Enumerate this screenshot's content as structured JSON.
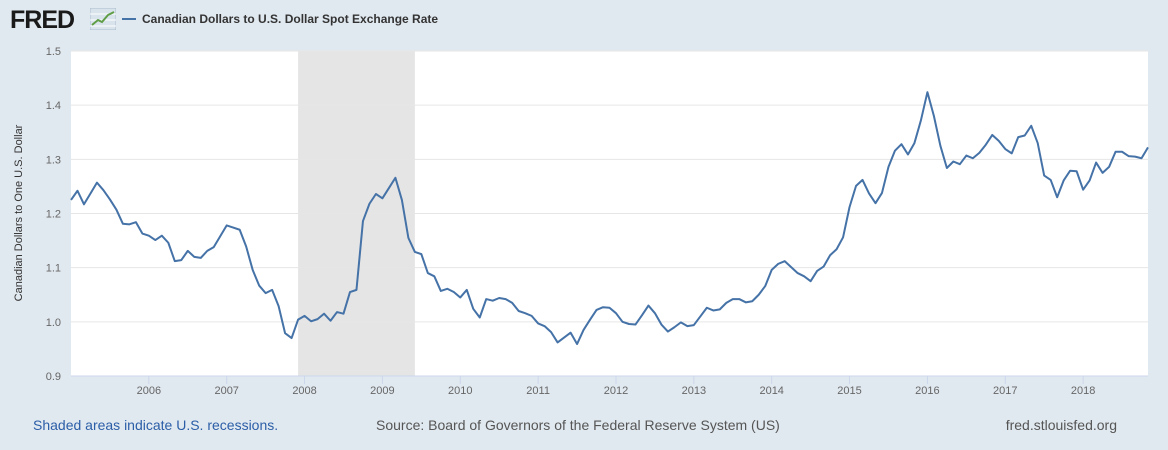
{
  "header": {
    "logo_text": "FRED",
    "logo_icon": "chart-line-icon",
    "legend_label": "Canadian Dollars to U.S. Dollar Spot Exchange Rate",
    "series_color": "#4572a7"
  },
  "footer": {
    "recession_note": "Shaded areas indicate U.S. recessions.",
    "source": "Source: Board of Governors of the Federal Reserve System (US)",
    "site": "fred.stlouisfed.org"
  },
  "chart_data": {
    "type": "line",
    "ylabel": "Canadian Dollars to One U.S. Dollar",
    "xlabel": "",
    "ylim": [
      0.9,
      1.5
    ],
    "yticks": [
      "0.9",
      "1.0",
      "1.1",
      "1.2",
      "1.3",
      "1.4",
      "1.5"
    ],
    "xlim": [
      "2005-01",
      "2018-11"
    ],
    "xticks": [
      "2006",
      "2007",
      "2008",
      "2009",
      "2010",
      "2011",
      "2012",
      "2013",
      "2014",
      "2015",
      "2016",
      "2017",
      "2018"
    ],
    "grid": true,
    "legend_position": "top-left",
    "recessions": [
      {
        "start": "2007-12",
        "end": "2009-06"
      }
    ],
    "recession_color": "#e5e5e5",
    "series": [
      {
        "name": "Canadian Dollars to U.S. Dollar Spot Exchange Rate",
        "color": "#4572a7",
        "start": "2005-01",
        "frequency": "monthly",
        "values": [
          1.225,
          1.242,
          1.217,
          1.237,
          1.257,
          1.243,
          1.226,
          1.207,
          1.181,
          1.18,
          1.184,
          1.163,
          1.159,
          1.151,
          1.159,
          1.146,
          1.112,
          1.114,
          1.131,
          1.12,
          1.118,
          1.131,
          1.138,
          1.158,
          1.178,
          1.174,
          1.17,
          1.139,
          1.096,
          1.067,
          1.053,
          1.059,
          1.029,
          0.979,
          0.97,
          1.004,
          1.011,
          1.001,
          1.005,
          1.015,
          1.002,
          1.018,
          1.015,
          1.055,
          1.059,
          1.186,
          1.218,
          1.236,
          1.228,
          1.247,
          1.266,
          1.225,
          1.155,
          1.129,
          1.125,
          1.09,
          1.084,
          1.057,
          1.061,
          1.055,
          1.045,
          1.059,
          1.024,
          1.008,
          1.042,
          1.039,
          1.044,
          1.042,
          1.035,
          1.02,
          1.016,
          1.011,
          0.997,
          0.992,
          0.981,
          0.962,
          0.971,
          0.98,
          0.959,
          0.985,
          1.004,
          1.022,
          1.027,
          1.026,
          1.016,
          1.0,
          0.996,
          0.995,
          1.012,
          1.03,
          1.016,
          0.995,
          0.982,
          0.99,
          0.999,
          0.992,
          0.994,
          1.01,
          1.026,
          1.021,
          1.023,
          1.035,
          1.042,
          1.042,
          1.036,
          1.038,
          1.05,
          1.066,
          1.096,
          1.107,
          1.112,
          1.101,
          1.09,
          1.084,
          1.075,
          1.094,
          1.102,
          1.123,
          1.134,
          1.156,
          1.212,
          1.251,
          1.262,
          1.237,
          1.219,
          1.238,
          1.286,
          1.316,
          1.328,
          1.309,
          1.33,
          1.372,
          1.424,
          1.38,
          1.325,
          1.284,
          1.296,
          1.291,
          1.307,
          1.302,
          1.312,
          1.327,
          1.345,
          1.334,
          1.319,
          1.311,
          1.341,
          1.344,
          1.362,
          1.33,
          1.27,
          1.262,
          1.23,
          1.261,
          1.279,
          1.278,
          1.244,
          1.261,
          1.294,
          1.275,
          1.286,
          1.314,
          1.314,
          1.306,
          1.305,
          1.302,
          1.322
        ]
      }
    ]
  }
}
